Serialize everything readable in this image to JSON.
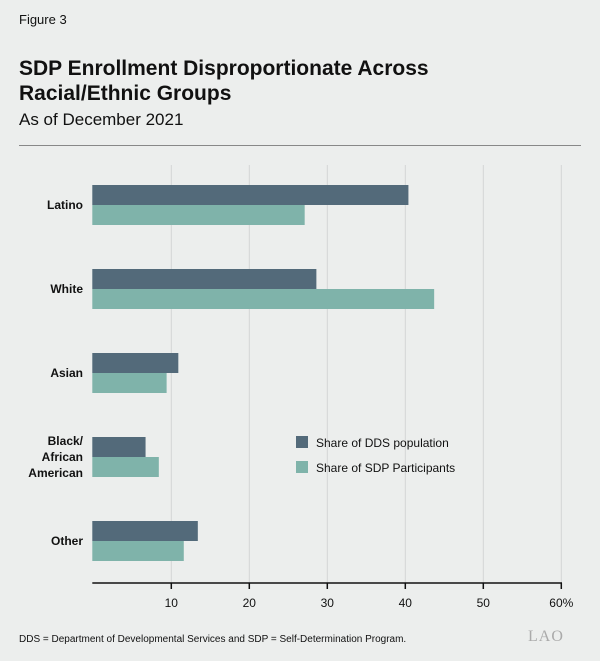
{
  "figure_label": "Figure 3",
  "title": "SDP Enrollment Disproportionate Across Racial/Ethnic Groups",
  "subtitle": "As of December 2021",
  "footnote": "DDS = Department of Developmental Services and SDP = Self-Determination Program.",
  "logo": "LAO",
  "chart_data": {
    "type": "bar",
    "orientation": "horizontal",
    "categories": [
      "Latino",
      "White",
      "Asian",
      "Black/ African American",
      "Other"
    ],
    "series": [
      {
        "name": "Share of DDS population",
        "color": "#536a7a",
        "values": [
          40.4,
          28.6,
          10.9,
          6.7,
          13.4
        ]
      },
      {
        "name": "Share of SDP Participants",
        "color": "#7fb3aa",
        "values": [
          27.1,
          43.7,
          9.4,
          8.4,
          11.6
        ]
      }
    ],
    "xlim": [
      0,
      60
    ],
    "xticks": [
      "10",
      "20",
      "30",
      "40",
      "50",
      "60%"
    ],
    "grid": true,
    "legend_placement": "bottom-right"
  }
}
